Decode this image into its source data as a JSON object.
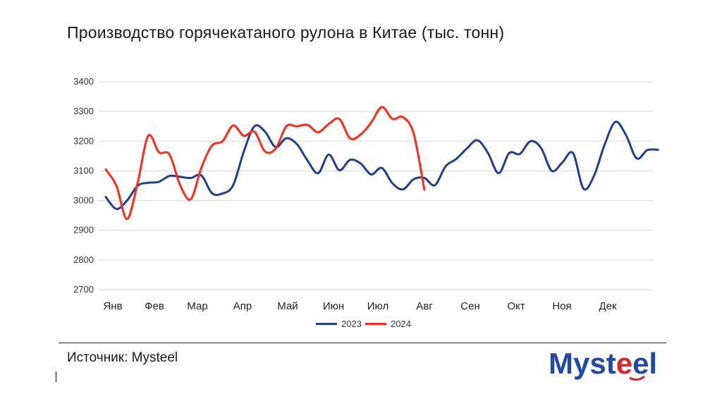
{
  "title": "Производство горячекатаного рулона в Китае (тыс. тонн)",
  "source": "Источник: Mysteel",
  "logo_text": "Mysteel",
  "colors": {
    "series_2023": "#1f3f95",
    "series_2024": "#ff2a1a",
    "grid": "#d9d9d9",
    "logo_blue": "#1f4aa8",
    "logo_red": "#e0202a"
  },
  "chart_data": {
    "type": "line",
    "title": "Производство горячекатаного рулона в Китае (тыс. тонн)",
    "xlabel": "",
    "ylabel": "",
    "ylim": [
      2700,
      3400
    ],
    "yticks": [
      2700,
      2800,
      2900,
      3000,
      3100,
      3200,
      3300,
      3400
    ],
    "month_labels": [
      "Янв",
      "Фев",
      "Мар",
      "Апр",
      "Май",
      "Июн",
      "Июл",
      "Авг",
      "Сен",
      "Окт",
      "Ноя",
      "Дек"
    ],
    "x_unit": "week",
    "x_range": [
      1,
      52
    ],
    "legend": "bottom",
    "series": [
      {
        "name": "2023",
        "values": [
          3012,
          2972,
          3000,
          3050,
          3060,
          3063,
          3083,
          3080,
          3076,
          3085,
          3025,
          3024,
          3052,
          3165,
          3250,
          3232,
          3180,
          3210,
          3190,
          3135,
          3092,
          3155,
          3102,
          3137,
          3125,
          3088,
          3110,
          3058,
          3038,
          3072,
          3076,
          3052,
          3115,
          3140,
          3175,
          3203,
          3160,
          3092,
          3160,
          3157,
          3200,
          3177,
          3100,
          3128,
          3160,
          3040,
          3085,
          3190,
          3265,
          3220,
          3142,
          3170,
          3171
        ]
      },
      {
        "name": "2024",
        "values": [
          3105,
          3050,
          2938,
          3060,
          3218,
          3163,
          3155,
          3052,
          3005,
          3110,
          3185,
          3200,
          3253,
          3218,
          3232,
          3165,
          3175,
          3250,
          3250,
          3255,
          3230,
          3258,
          3275,
          3210,
          3222,
          3263,
          3315,
          3275,
          3281,
          3225,
          3037
        ]
      }
    ]
  },
  "legend": {
    "label_2023": "2023",
    "label_2024": "2024"
  }
}
